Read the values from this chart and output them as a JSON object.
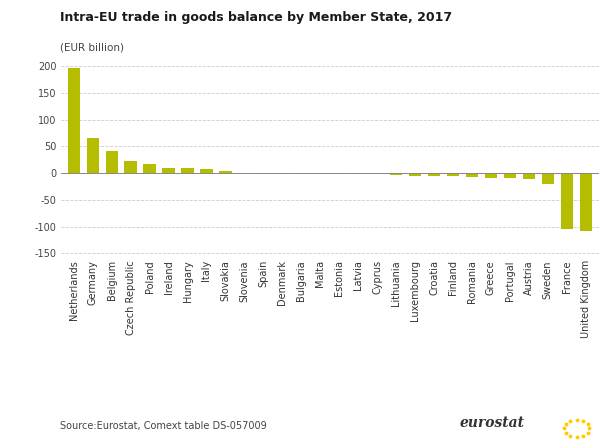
{
  "title": "Intra-EU trade in goods balance by Member State, 2017",
  "ylabel": "(EUR billion)",
  "source": "Source:Eurostat, Comext table DS-057009",
  "bar_color": "#b5bd00",
  "background_color": "#ffffff",
  "categories": [
    "Netherlands",
    "Germany",
    "Belgium",
    "Czech Republic",
    "Poland",
    "Ireland",
    "Hungary",
    "Italy",
    "Slovakia",
    "Slovenia",
    "Spain",
    "Denmark",
    "Bulgaria",
    "Malta",
    "Estonia",
    "Latvia",
    "Cyprus",
    "Lithuania",
    "Luxembourg",
    "Croatia",
    "Finland",
    "Romania",
    "Greece",
    "Portugal",
    "Austria",
    "Sweden",
    "France",
    "United Kingdom"
  ],
  "values": [
    197,
    65,
    42,
    22,
    16,
    10,
    9,
    8,
    4,
    1,
    -1,
    -1,
    -1,
    -1,
    -2,
    -2,
    -2,
    -3,
    -5,
    -5,
    -6,
    -8,
    -9,
    -10,
    -12,
    -20,
    -105,
    -108
  ],
  "ylim": [
    -160,
    215
  ],
  "yticks": [
    -150,
    -100,
    -50,
    0,
    50,
    100,
    150,
    200
  ],
  "grid_color": "#cccccc",
  "title_fontsize": 9,
  "ylabel_fontsize": 7.5,
  "tick_fontsize": 7,
  "source_fontsize": 7
}
